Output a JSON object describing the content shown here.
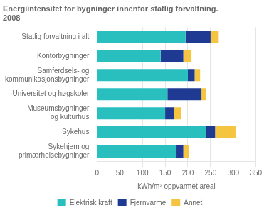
{
  "chart_data": {
    "type": "bar",
    "orientation": "horizontal",
    "stacked": true,
    "title": "Energiintensitet for bygninger innenfor statlig forvaltning.\n2008",
    "categories": [
      "Statlig forvaltning i alt",
      "Kontorbygninger",
      "Samferdsels- og\nkommunikasjonsbygninger",
      "Universitet og høgskoler",
      "Museumsbygninger\nog kulturhus",
      "Sykehus",
      "Sykehjem og\nprimærhelsebygninger"
    ],
    "series": [
      {
        "name": "Elektrisk kraft",
        "color": "#2ABFBF",
        "values": [
          195,
          140,
          200,
          155,
          150,
          240,
          175
        ]
      },
      {
        "name": "Fjernvarme",
        "color": "#1F3A93",
        "values": [
          55,
          50,
          15,
          75,
          20,
          20,
          15
        ]
      },
      {
        "name": "Annet",
        "color": "#F5C542",
        "values": [
          18,
          18,
          12,
          10,
          15,
          45,
          12
        ]
      }
    ],
    "xlabel": "kWh/m² oppvarmet areal",
    "xlim": [
      0,
      350
    ],
    "xticks": [
      0,
      50,
      100,
      150,
      200,
      250,
      300,
      350
    ],
    "grid": true,
    "legend": "bottom"
  }
}
